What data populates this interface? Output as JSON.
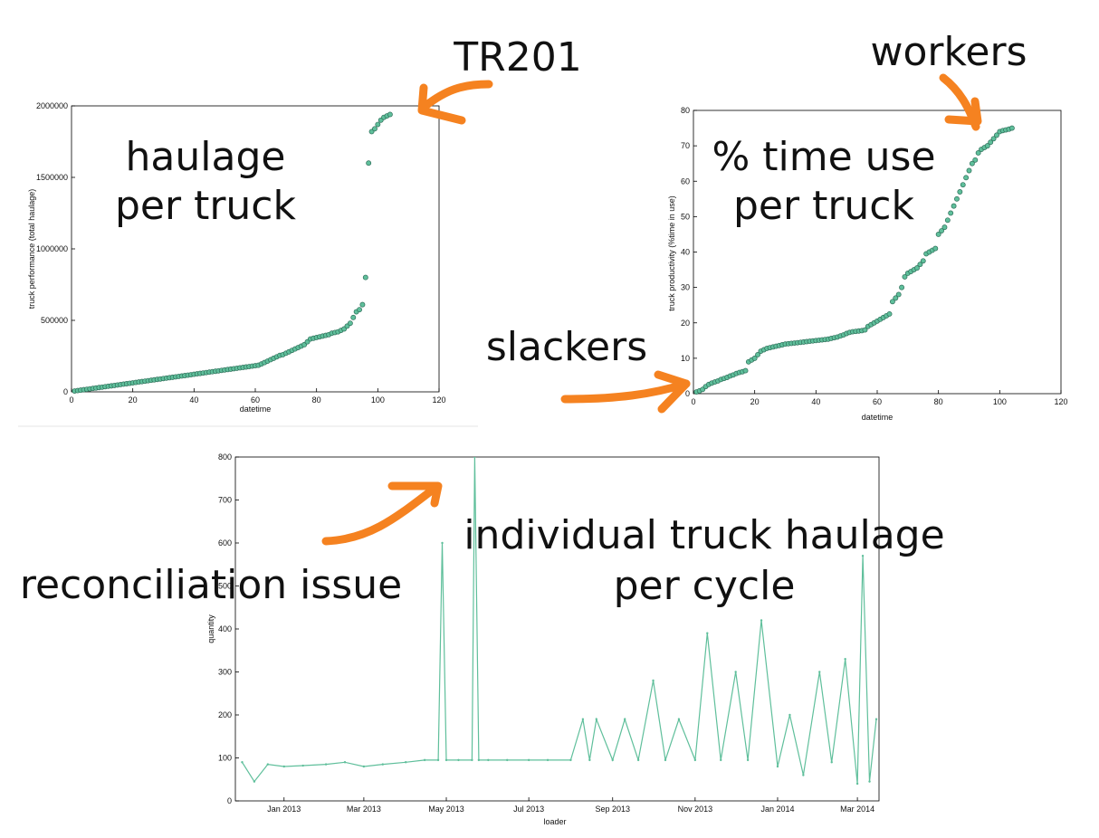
{
  "annotations": {
    "tr201": "TR201",
    "workers": "workers",
    "slackers": "slackers",
    "reconciliation": "reconciliation issue",
    "chart1_title_l1": "haulage",
    "chart1_title_l2": "per truck",
    "chart2_title_l1": "% time use",
    "chart2_title_l2": "per truck",
    "chart3_title_l1": "individual truck haulage",
    "chart3_title_l2": "per cycle"
  },
  "colors": {
    "series": "#5fbf9b",
    "marker_edge": "#2f6f5a",
    "arrow": "#f58220",
    "axis": "#000000"
  },
  "chart_data": [
    {
      "type": "scatter",
      "xlabel": "datetime",
      "ylabel": "truck performance (total haulage)",
      "xlim": [
        0,
        120
      ],
      "ylim": [
        0,
        2000000
      ],
      "xticks": [
        "0",
        "20",
        "40",
        "60",
        "80",
        "100",
        "120"
      ],
      "yticks": [
        "0",
        "500000",
        "1000000",
        "1500000",
        "2000000"
      ],
      "grid": false,
      "x": [
        1,
        2,
        3,
        4,
        5,
        6,
        7,
        8,
        9,
        10,
        11,
        12,
        13,
        14,
        15,
        16,
        17,
        18,
        19,
        20,
        21,
        22,
        23,
        24,
        25,
        26,
        27,
        28,
        29,
        30,
        31,
        32,
        33,
        34,
        35,
        36,
        37,
        38,
        39,
        40,
        41,
        42,
        43,
        44,
        45,
        46,
        47,
        48,
        49,
        50,
        51,
        52,
        53,
        54,
        55,
        56,
        57,
        58,
        59,
        60,
        61,
        62,
        63,
        64,
        65,
        66,
        67,
        68,
        69,
        70,
        71,
        72,
        73,
        74,
        75,
        76,
        77,
        78,
        79,
        80,
        81,
        82,
        83,
        84,
        85,
        86,
        87,
        88,
        89,
        90,
        91,
        92,
        93,
        94,
        95,
        96,
        97,
        98,
        99,
        100,
        101,
        102,
        103,
        104
      ],
      "y": [
        6000,
        9000,
        12000,
        15000,
        18000,
        21000,
        24000,
        27000,
        30000,
        33000,
        36000,
        39000,
        42000,
        45000,
        48000,
        51000,
        54000,
        57000,
        60000,
        63000,
        66000,
        69000,
        72000,
        75000,
        78000,
        81000,
        84000,
        87000,
        90000,
        93000,
        96000,
        99000,
        102000,
        105000,
        108000,
        111000,
        114000,
        117000,
        120000,
        123000,
        126000,
        129000,
        132000,
        135000,
        138000,
        141000,
        144000,
        147000,
        150000,
        153000,
        156000,
        159000,
        162000,
        165000,
        168000,
        171000,
        174000,
        177000,
        180000,
        183000,
        186000,
        195000,
        205000,
        215000,
        225000,
        235000,
        245000,
        255000,
        260000,
        270000,
        280000,
        290000,
        300000,
        310000,
        320000,
        330000,
        350000,
        370000,
        375000,
        380000,
        385000,
        390000,
        395000,
        400000,
        410000,
        415000,
        420000,
        430000,
        440000,
        460000,
        480000,
        520000,
        560000,
        575000,
        610000,
        800000,
        1600000,
        1820000,
        1840000,
        1870000,
        1900000,
        1920000,
        1930000,
        1940000
      ]
    },
    {
      "type": "scatter",
      "xlabel": "datetime",
      "ylabel": "truck productivity (%time in use)",
      "xlim": [
        0,
        120
      ],
      "ylim": [
        0,
        80
      ],
      "xticks": [
        "0",
        "20",
        "40",
        "60",
        "80",
        "100",
        "120"
      ],
      "yticks": [
        "0",
        "10",
        "20",
        "30",
        "40",
        "50",
        "60",
        "70",
        "80"
      ],
      "grid": false,
      "x": [
        1,
        2,
        3,
        4,
        5,
        6,
        7,
        8,
        9,
        10,
        11,
        12,
        13,
        14,
        15,
        16,
        17,
        18,
        19,
        20,
        21,
        22,
        23,
        24,
        25,
        26,
        27,
        28,
        29,
        30,
        31,
        32,
        33,
        34,
        35,
        36,
        37,
        38,
        39,
        40,
        41,
        42,
        43,
        44,
        45,
        46,
        47,
        48,
        49,
        50,
        51,
        52,
        53,
        54,
        55,
        56,
        57,
        58,
        59,
        60,
        61,
        62,
        63,
        64,
        65,
        66,
        67,
        68,
        69,
        70,
        71,
        72,
        73,
        74,
        75,
        76,
        77,
        78,
        79,
        80,
        81,
        82,
        83,
        84,
        85,
        86,
        87,
        88,
        89,
        90,
        91,
        92,
        93,
        94,
        95,
        96,
        97,
        98,
        99,
        100,
        101,
        102,
        103,
        104
      ],
      "y": [
        0.5,
        0.8,
        1.2,
        2,
        2.6,
        3,
        3.3,
        3.6,
        4,
        4.3,
        4.6,
        5,
        5.3,
        5.7,
        6,
        6.2,
        6.5,
        9,
        9.5,
        10,
        11,
        12,
        12.4,
        12.8,
        13,
        13.2,
        13.4,
        13.6,
        13.8,
        14,
        14.1,
        14.2,
        14.3,
        14.4,
        14.5,
        14.6,
        14.7,
        14.8,
        14.9,
        15,
        15.1,
        15.2,
        15.3,
        15.4,
        15.6,
        15.8,
        16,
        16.3,
        16.6,
        17,
        17.3,
        17.5,
        17.6,
        17.7,
        17.8,
        18,
        19,
        19.5,
        20,
        20.5,
        21,
        21.5,
        22,
        22.5,
        26,
        27,
        28,
        30,
        33,
        34,
        34.5,
        35,
        35.5,
        36.5,
        37.5,
        39.5,
        40,
        40.5,
        41,
        45,
        46,
        47,
        49,
        51,
        53,
        55,
        57,
        59,
        61,
        63,
        65,
        66,
        68,
        69,
        69.5,
        70,
        71,
        72,
        73,
        74,
        74.3,
        74.5,
        74.7,
        75
      ]
    },
    {
      "type": "line",
      "xlabel": "loader",
      "ylabel": "quantity",
      "ylim": [
        0,
        800
      ],
      "xticks": [
        "Jan 2013",
        "Mar 2013",
        "May 2013",
        "Jul 2013",
        "Sep 2013",
        "Nov 2013",
        "Jan 2014",
        "Mar 2014"
      ],
      "yticks": [
        "0",
        "100",
        "200",
        "300",
        "400",
        "500",
        "600",
        "700",
        "800"
      ],
      "grid": false,
      "x": [
        "2012-12-01",
        "2012-12-10",
        "2012-12-20",
        "2013-01-01",
        "2013-01-15",
        "2013-02-01",
        "2013-02-15",
        "2013-03-01",
        "2013-03-15",
        "2013-04-01",
        "2013-04-15",
        "2013-04-25",
        "2013-04-28",
        "2013-05-01",
        "2013-05-10",
        "2013-05-20",
        "2013-05-22",
        "2013-05-25",
        "2013-06-01",
        "2013-06-15",
        "2013-07-01",
        "2013-07-15",
        "2013-08-01",
        "2013-08-10",
        "2013-08-15",
        "2013-08-20",
        "2013-09-01",
        "2013-09-10",
        "2013-09-20",
        "2013-10-01",
        "2013-10-10",
        "2013-10-20",
        "2013-11-01",
        "2013-11-10",
        "2013-11-20",
        "2013-12-01",
        "2013-12-10",
        "2013-12-20",
        "2014-01-01",
        "2014-01-10",
        "2014-01-20",
        "2014-02-01",
        "2014-02-10",
        "2014-02-20",
        "2014-03-01",
        "2014-03-05",
        "2014-03-10",
        "2014-03-15"
      ],
      "y": [
        90,
        45,
        85,
        80,
        82,
        85,
        90,
        80,
        85,
        90,
        95,
        95,
        600,
        95,
        95,
        95,
        800,
        95,
        95,
        95,
        95,
        95,
        95,
        190,
        95,
        190,
        95,
        190,
        95,
        280,
        95,
        190,
        95,
        390,
        95,
        300,
        95,
        420,
        80,
        200,
        60,
        300,
        90,
        330,
        40,
        570,
        45,
        190
      ]
    }
  ]
}
